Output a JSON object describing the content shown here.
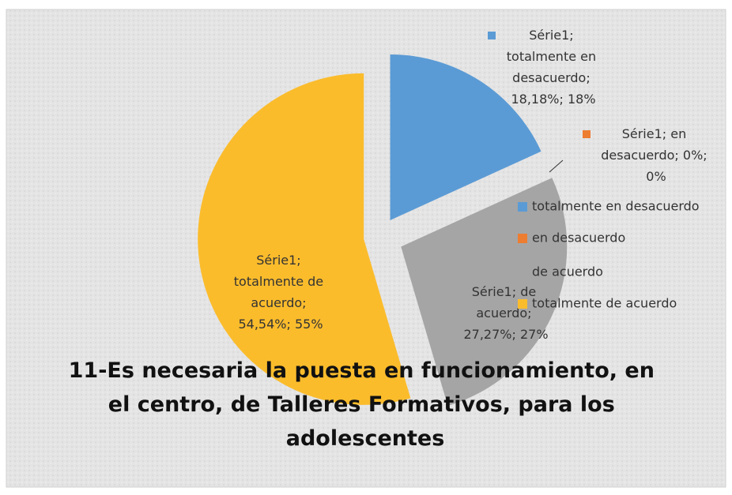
{
  "chart_data": {
    "type": "pie",
    "title": "11-Es necesaria la puesta en funcionamiento, en el centro, de Talleres Formativos, para los adolescentes",
    "series_name": "Série1",
    "categories": [
      "totalmente en desacuerdo",
      "en desacuerdo",
      "de acuerdo",
      "totalmente de acuerdo"
    ],
    "values": [
      18.18,
      0,
      27.27,
      54.54
    ],
    "value_labels": [
      "Série1; totalmente en desacuerdo; 18,18%; 18%",
      "Série1; en desacuerdo; 0%; 0%",
      "Série1; de acuerdo; 27,27%; 27%",
      "Série1; totalmente de acuerdo; 54,54%; 55%"
    ],
    "colors": [
      "#5b9bd5",
      "#ed7d31",
      "#a5a5a5",
      "#fbbc2c"
    ],
    "legend": "right"
  }
}
